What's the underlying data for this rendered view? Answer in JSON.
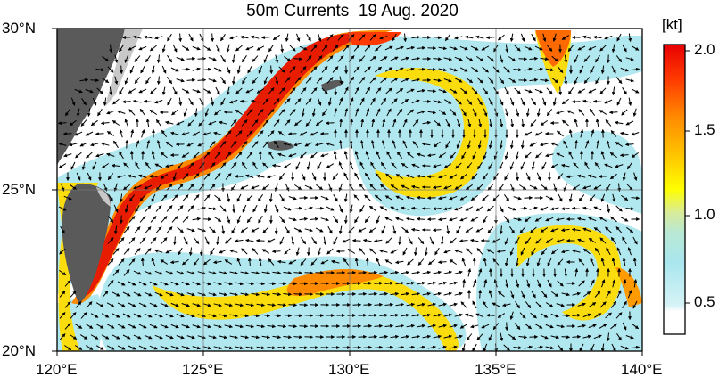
{
  "title": "50m Currents  19 Aug. 2020",
  "lat_labels": [
    "30°N",
    "25°N",
    "20°N"
  ],
  "lon_labels": [
    "120°E",
    "125°E",
    "130°E",
    "135°E",
    "140°E"
  ],
  "colorbar": {
    "unit": "[kt]",
    "ticks": [
      "2.0",
      "1.5",
      "1.0",
      "0.5"
    ],
    "colors": [
      "#ffffff",
      "#c9f0f5",
      "#a9e6ee",
      "#d8ec9a",
      "#ffff00",
      "#ffc400",
      "#ff8a00",
      "#ff3a00",
      "#e80000"
    ]
  },
  "colors": {
    "land": "#5a5a5a",
    "land_light": "#c8c8c8",
    "slow_cyan": "#a9e6ee",
    "fast_red": "#e81c00"
  }
}
